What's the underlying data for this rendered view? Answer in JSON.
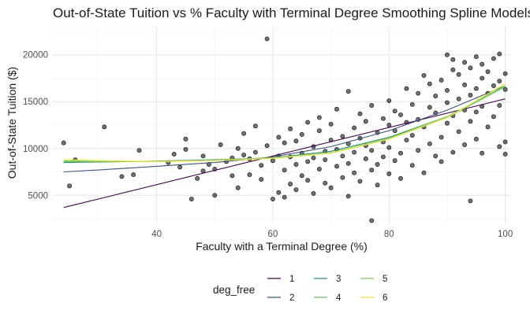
{
  "chart_data": {
    "type": "scatter",
    "title": "Out-of-State Tuition vs % Faculty with Terminal Degree Smoothing Spline Models",
    "xlabel": "Faculty with a Terminal Degree (%)",
    "ylabel": "Out-of-State Tuition ($)",
    "xlim": [
      22,
      101
    ],
    "ylim": [
      2000,
      23000
    ],
    "x_ticks": [
      40,
      60,
      80,
      100
    ],
    "y_ticks": [
      5000,
      10000,
      15000,
      20000
    ],
    "grid": true,
    "points_color": "#000000",
    "points": [
      [
        24,
        10600
      ],
      [
        25,
        6000
      ],
      [
        26,
        8800
      ],
      [
        31,
        12300
      ],
      [
        34,
        7000
      ],
      [
        36,
        7200
      ],
      [
        37,
        9800
      ],
      [
        42,
        8500
      ],
      [
        43,
        9400
      ],
      [
        44,
        8000
      ],
      [
        45,
        11000
      ],
      [
        45,
        9900
      ],
      [
        46,
        4600
      ],
      [
        47,
        6800
      ],
      [
        48,
        9200
      ],
      [
        48,
        7600
      ],
      [
        49,
        8300
      ],
      [
        50,
        5000
      ],
      [
        50,
        7800
      ],
      [
        51,
        10400
      ],
      [
        52,
        8600
      ],
      [
        53,
        7100
      ],
      [
        53,
        9000
      ],
      [
        54,
        10000
      ],
      [
        54,
        5800
      ],
      [
        55,
        9300
      ],
      [
        55,
        11600
      ],
      [
        56,
        8900
      ],
      [
        56,
        7200
      ],
      [
        57,
        12400
      ],
      [
        57,
        9600
      ],
      [
        58,
        6700
      ],
      [
        58,
        8200
      ],
      [
        59,
        21700
      ],
      [
        59,
        10300
      ],
      [
        60,
        4600
      ],
      [
        60,
        8700
      ],
      [
        61,
        11200
      ],
      [
        61,
        5300
      ],
      [
        61,
        9200
      ],
      [
        62,
        4800
      ],
      [
        62,
        7700
      ],
      [
        62,
        10600
      ],
      [
        63,
        9100
      ],
      [
        63,
        12100
      ],
      [
        63,
        6200
      ],
      [
        64,
        8300
      ],
      [
        64,
        10800
      ],
      [
        64,
        5600
      ],
      [
        65,
        11500
      ],
      [
        65,
        9500
      ],
      [
        65,
        7100
      ],
      [
        66,
        8600
      ],
      [
        66,
        12800
      ],
      [
        66,
        6600
      ],
      [
        67,
        10200
      ],
      [
        67,
        9000
      ],
      [
        67,
        5200
      ],
      [
        68,
        11900
      ],
      [
        68,
        7800
      ],
      [
        68,
        13300
      ],
      [
        69,
        9700
      ],
      [
        69,
        6300
      ],
      [
        69,
        8800
      ],
      [
        70,
        10900
      ],
      [
        70,
        12600
      ],
      [
        70,
        5800
      ],
      [
        71,
        8100
      ],
      [
        71,
        9900
      ],
      [
        71,
        14200
      ],
      [
        72,
        6900
      ],
      [
        72,
        11300
      ],
      [
        72,
        9200
      ],
      [
        73,
        16100
      ],
      [
        73,
        8400
      ],
      [
        73,
        10500
      ],
      [
        73,
        4900
      ],
      [
        74,
        12200
      ],
      [
        74,
        7400
      ],
      [
        74,
        9600
      ],
      [
        75,
        11100
      ],
      [
        75,
        13700
      ],
      [
        75,
        6500
      ],
      [
        76,
        8900
      ],
      [
        76,
        10300
      ],
      [
        76,
        12900
      ],
      [
        77,
        7700
      ],
      [
        77,
        9800
      ],
      [
        77,
        14600
      ],
      [
        77,
        2300
      ],
      [
        78,
        11700
      ],
      [
        78,
        8300
      ],
      [
        78,
        6100
      ],
      [
        79,
        10700
      ],
      [
        79,
        13200
      ],
      [
        79,
        9100
      ],
      [
        80,
        7300
      ],
      [
        80,
        12500
      ],
      [
        80,
        15100
      ],
      [
        80,
        10100
      ],
      [
        81,
        8700
      ],
      [
        81,
        11900
      ],
      [
        81,
        14000
      ],
      [
        82,
        9500
      ],
      [
        82,
        13600
      ],
      [
        82,
        6800
      ],
      [
        83,
        10900
      ],
      [
        83,
        12800
      ],
      [
        83,
        16400
      ],
      [
        84,
        8200
      ],
      [
        84,
        14700
      ],
      [
        84,
        11400
      ],
      [
        85,
        9800
      ],
      [
        85,
        15900
      ],
      [
        85,
        13100
      ],
      [
        86,
        7400
      ],
      [
        86,
        12300
      ],
      [
        86,
        17800
      ],
      [
        87,
        10500
      ],
      [
        87,
        14400
      ],
      [
        87,
        16900
      ],
      [
        88,
        9200
      ],
      [
        88,
        13800
      ],
      [
        88,
        15600
      ],
      [
        89,
        11200
      ],
      [
        89,
        17300
      ],
      [
        89,
        8600
      ],
      [
        90,
        20000
      ],
      [
        90,
        12700
      ],
      [
        90,
        14900
      ],
      [
        90,
        16200
      ],
      [
        91,
        9600
      ],
      [
        91,
        13500
      ],
      [
        91,
        18400
      ],
      [
        91,
        19500
      ],
      [
        92,
        11800
      ],
      [
        92,
        15300
      ],
      [
        92,
        17900
      ],
      [
        93,
        10400
      ],
      [
        93,
        14100
      ],
      [
        93,
        19200
      ],
      [
        93,
        16800
      ],
      [
        94,
        4400
      ],
      [
        94,
        12900
      ],
      [
        94,
        18600
      ],
      [
        94,
        15700
      ],
      [
        95,
        11000
      ],
      [
        95,
        16400
      ],
      [
        95,
        19800
      ],
      [
        95,
        13900
      ],
      [
        96,
        14500
      ],
      [
        96,
        17500
      ],
      [
        96,
        19000
      ],
      [
        96,
        9500
      ],
      [
        97,
        12300
      ],
      [
        97,
        18200
      ],
      [
        97,
        15900
      ],
      [
        98,
        16700
      ],
      [
        98,
        19600
      ],
      [
        98,
        13400
      ],
      [
        99,
        10200
      ],
      [
        99,
        17200
      ],
      [
        99,
        20100
      ],
      [
        99,
        14600
      ],
      [
        100,
        18000
      ],
      [
        100,
        16300
      ],
      [
        100,
        9400
      ],
      [
        100,
        10700
      ]
    ],
    "series": [
      {
        "name": "1",
        "color": "#440154",
        "x": [
          24,
          100
        ],
        "y": [
          3700,
          15300
        ]
      },
      {
        "name": "2",
        "color": "#3b528b",
        "x": [
          24,
          30,
          40,
          50,
          60,
          70,
          80,
          90,
          100
        ],
        "y": [
          7500,
          7700,
          8100,
          8500,
          9100,
          10200,
          11900,
          14100,
          16700
        ]
      },
      {
        "name": "3",
        "color": "#21908d",
        "x": [
          24,
          30,
          40,
          50,
          60,
          70,
          80,
          90,
          100
        ],
        "y": [
          8500,
          8550,
          8650,
          8800,
          9000,
          9700,
          11200,
          13400,
          16600
        ]
      },
      {
        "name": "4",
        "color": "#5dc963",
        "x": [
          24,
          30,
          40,
          50,
          60,
          70,
          80,
          90,
          100
        ],
        "y": [
          8600,
          8600,
          8620,
          8750,
          8950,
          9500,
          11000,
          13300,
          16600
        ]
      },
      {
        "name": "5",
        "color": "#7ad151",
        "x": [
          24,
          30,
          40,
          50,
          60,
          70,
          80,
          90,
          100
        ],
        "y": [
          8700,
          8650,
          8600,
          8750,
          9000,
          9550,
          11100,
          13400,
          16700
        ]
      },
      {
        "name": "6",
        "color": "#fde725",
        "x": [
          24,
          30,
          40,
          50,
          60,
          70,
          80,
          90,
          100
        ],
        "y": [
          8800,
          8700,
          8600,
          8700,
          8950,
          9500,
          11000,
          13300,
          16900
        ]
      }
    ],
    "legend": {
      "title": "deg_free",
      "placement": "bottom",
      "items": [
        {
          "label": "1",
          "color": "#440154"
        },
        {
          "label": "2",
          "color": "#3b528b"
        },
        {
          "label": "3",
          "color": "#21908d"
        },
        {
          "label": "4",
          "color": "#5dc963"
        },
        {
          "label": "5",
          "color": "#7ad151"
        },
        {
          "label": "6",
          "color": "#fde725"
        }
      ]
    }
  }
}
